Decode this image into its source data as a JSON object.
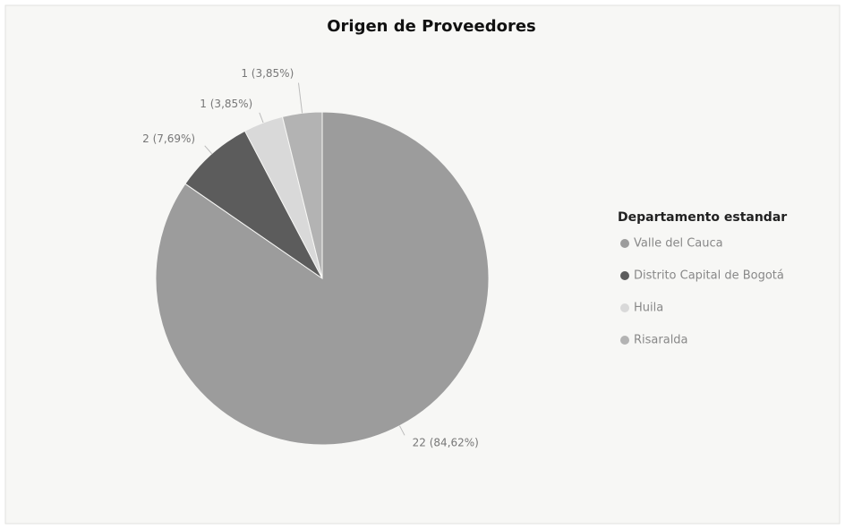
{
  "chart_data": {
    "type": "pie",
    "title": "Origen de Proveedores",
    "legend_title": "Departamento estandar",
    "categories": [
      "Valle del Cauca",
      "Distrito Capital de Bogotá",
      "Huila",
      "Risaralda"
    ],
    "values": [
      22,
      2,
      1,
      1
    ],
    "value_labels": [
      "22 (84,62%)",
      "2 (7,69%)",
      "1 (3,85%)",
      "1 (3,85%)"
    ],
    "colors": [
      "#9c9c9c",
      "#5c5c5c",
      "#d9d9d9",
      "#b3b3b3"
    ],
    "legend_position": "right"
  }
}
